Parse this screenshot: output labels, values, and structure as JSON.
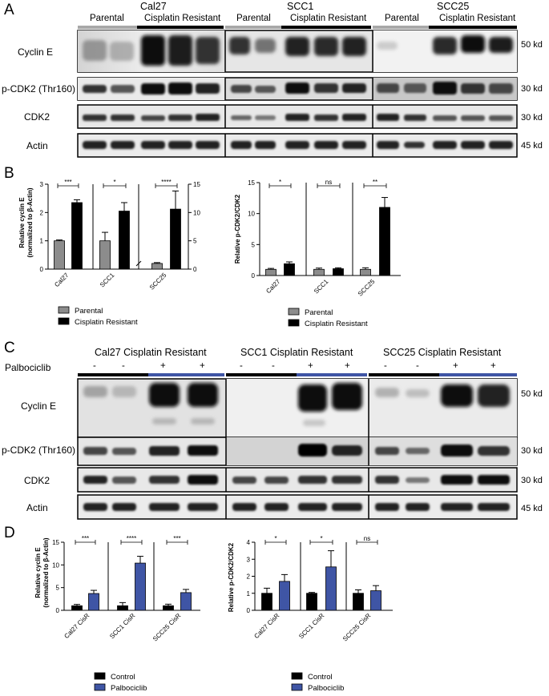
{
  "panel_letters": [
    "A",
    "B",
    "C",
    "D"
  ],
  "panelA": {
    "cell_lines": [
      "Cal27",
      "SCC1",
      "SCC25"
    ],
    "group_labels": [
      "Parental",
      "Cisplatin Resistant"
    ],
    "rows": [
      {
        "protein": "Cyclin E",
        "kd": "50 kd"
      },
      {
        "protein": "p-CDK2 (Thr160)",
        "kd": "30 kd"
      },
      {
        "protein": "CDK2",
        "kd": "30 kd"
      },
      {
        "protein": "Actin",
        "kd": "45 kd"
      }
    ]
  },
  "panelC": {
    "cell_lines": [
      "Cal27 Cisplatin Resistant",
      "SCC1 Cisplatin Resistant",
      "SCC25 Cisplatin Resistant"
    ],
    "treatment_label": "Palbociclib",
    "lane_signs": [
      "-",
      "-",
      "+",
      "+"
    ],
    "rows": [
      {
        "protein": "Cyclin E",
        "kd": "50 kd"
      },
      {
        "protein": "p-CDK2 (Thr160)",
        "kd": "30 kd"
      },
      {
        "protein": "CDK2",
        "kd": "30 kd"
      },
      {
        "protein": "Actin",
        "kd": "45 kd"
      }
    ]
  },
  "colors": {
    "parental": "#8c8c8c",
    "resistant": "#000000",
    "control": "#000000",
    "palbociclib": "#3f55a5"
  },
  "chart_data": [
    {
      "type": "bar",
      "panel": "B-left",
      "ylabel": "Relative cyclin E (normalized to β-Actin)",
      "categories": [
        "Cal27",
        "SCC1",
        "SCC25"
      ],
      "series": [
        {
          "name": "Parental",
          "values": [
            1.0,
            1.0,
            1.0
          ],
          "errors": [
            0.03,
            0.3,
            0.15
          ]
        },
        {
          "name": "Cisplatin Resistant",
          "values": [
            2.35,
            2.05,
            10.6
          ],
          "errors": [
            0.1,
            0.3,
            3.2
          ]
        }
      ],
      "ylim_left": [
        0,
        3
      ],
      "yticks_left": [
        0,
        1,
        2,
        3
      ],
      "ylim_right": [
        0,
        15
      ],
      "yticks_right": [
        0,
        5,
        10,
        15
      ],
      "right_axis_category": "SCC25",
      "significance": [
        "***",
        "*",
        "****"
      ],
      "legend": [
        "Parental",
        "Cisplatin Resistant"
      ]
    },
    {
      "type": "bar",
      "panel": "B-right",
      "ylabel": "Relative p-CDK2/CDK2",
      "categories": [
        "Cal27",
        "SCC1",
        "SCC25"
      ],
      "series": [
        {
          "name": "Parental",
          "values": [
            1.0,
            1.0,
            1.0
          ],
          "errors": [
            0.15,
            0.2,
            0.25
          ]
        },
        {
          "name": "Cisplatin Resistant",
          "values": [
            1.9,
            1.1,
            11.0
          ],
          "errors": [
            0.3,
            0.15,
            1.6
          ]
        }
      ],
      "ylim": [
        0,
        15
      ],
      "yticks": [
        0,
        5,
        10,
        15
      ],
      "significance": [
        "*",
        "ns",
        "**"
      ],
      "legend": [
        "Parental",
        "Cisplatin Resistant"
      ]
    },
    {
      "type": "bar",
      "panel": "D-left",
      "ylabel": "Relative cyclin E (normalized to β-Actin)",
      "categories": [
        "Cal27 CisR",
        "SCC1 CisR",
        "SCC25 CisR"
      ],
      "series": [
        {
          "name": "Control",
          "values": [
            1.0,
            1.0,
            1.0
          ],
          "errors": [
            0.3,
            0.7,
            0.35
          ]
        },
        {
          "name": "Palbociclib",
          "values": [
            3.7,
            10.4,
            3.9
          ],
          "errors": [
            0.7,
            1.5,
            0.7
          ]
        }
      ],
      "ylim": [
        0,
        15
      ],
      "yticks": [
        0,
        5,
        10,
        15
      ],
      "significance": [
        "***",
        "****",
        "***"
      ],
      "legend": [
        "Control",
        "Palbociclib"
      ]
    },
    {
      "type": "bar",
      "panel": "D-right",
      "ylabel": "Relative p-CDK2/CDK2",
      "categories": [
        "Cal27 CisR",
        "SCC1 CisR",
        "SCC25 CisR"
      ],
      "series": [
        {
          "name": "Control",
          "values": [
            1.0,
            1.0,
            1.0
          ],
          "errors": [
            0.3,
            0.05,
            0.2
          ]
        },
        {
          "name": "Palbociclib",
          "values": [
            1.7,
            2.55,
            1.15
          ],
          "errors": [
            0.4,
            0.95,
            0.3
          ]
        }
      ],
      "ylim": [
        0,
        4
      ],
      "yticks": [
        0,
        1,
        2,
        3,
        4
      ],
      "significance": [
        "*",
        "*",
        "ns"
      ],
      "legend": [
        "Control",
        "Palbociclib"
      ]
    }
  ]
}
